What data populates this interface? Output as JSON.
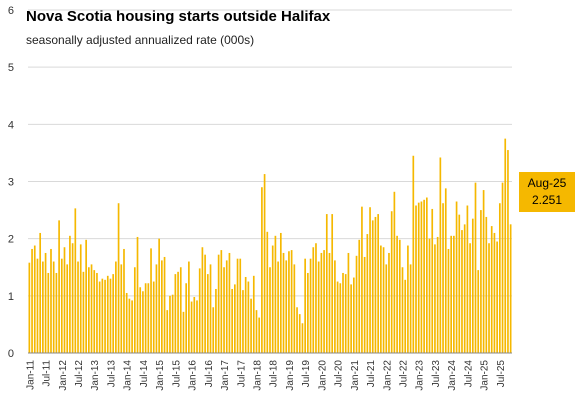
{
  "chart_data": {
    "type": "bar",
    "title": "Nova Scotia housing  starts outside Halifax",
    "subtitle": "seasonally adjusted annualized rate (000s)",
    "ylim": [
      0,
      6
    ],
    "yticks": [
      0,
      1,
      2,
      3,
      4,
      5,
      6
    ],
    "grid": true,
    "bar_color": "#F5B800",
    "start": "2011-01",
    "xtick_labels": [
      "Jan-11",
      "Jul-11",
      "Jan-12",
      "Jul-12",
      "Jan-13",
      "Jul-13",
      "Jan-14",
      "Jul-14",
      "Jan-15",
      "Jul-15",
      "Jan-16",
      "Jul-16",
      "Jan-17",
      "Jul-17",
      "Jan-18",
      "Jul-18",
      "Jan-19",
      "Jul-19",
      "Jan-20",
      "Jul-20",
      "Jan-21",
      "Jul-21",
      "Jan-22",
      "Jul-22",
      "Jan-23",
      "Jul-23",
      "Jan-24",
      "Jul-24",
      "Jan-25",
      "Jul-25"
    ],
    "values": [
      1.58,
      1.82,
      1.88,
      1.65,
      2.1,
      1.6,
      1.75,
      1.4,
      1.82,
      1.6,
      1.4,
      2.32,
      1.65,
      1.85,
      1.55,
      2.05,
      1.92,
      2.53,
      1.6,
      1.9,
      1.42,
      1.98,
      1.5,
      1.55,
      1.45,
      1.4,
      1.25,
      1.3,
      1.28,
      1.35,
      1.3,
      1.38,
      1.6,
      2.62,
      1.55,
      1.82,
      1.05,
      0.95,
      0.92,
      1.5,
      2.03,
      1.15,
      1.08,
      1.22,
      1.22,
      1.83,
      1.25,
      1.55,
      2.0,
      1.62,
      1.68,
      0.75,
      1.0,
      1.02,
      1.38,
      1.42,
      1.5,
      0.72,
      1.22,
      1.6,
      0.9,
      0.98,
      0.92,
      1.48,
      1.85,
      1.72,
      1.38,
      1.55,
      0.8,
      1.12,
      1.72,
      1.8,
      1.5,
      1.62,
      1.75,
      1.12,
      1.2,
      1.65,
      1.65,
      1.1,
      1.33,
      1.25,
      0.95,
      1.35,
      0.75,
      0.62,
      2.9,
      3.13,
      2.12,
      1.5,
      1.88,
      2.05,
      1.6,
      2.1,
      1.75,
      1.62,
      1.78,
      1.8,
      1.55,
      0.8,
      0.68,
      0.52,
      1.65,
      1.4,
      1.65,
      1.85,
      1.92,
      1.6,
      1.75,
      1.8,
      2.43,
      1.75,
      2.43,
      1.62,
      1.25,
      1.22,
      1.4,
      1.38,
      1.75,
      1.2,
      1.32,
      1.7,
      1.98,
      2.56,
      1.68,
      2.08,
      2.55,
      2.32,
      2.38,
      2.43,
      1.88,
      1.85,
      1.55,
      1.75,
      2.48,
      2.82,
      2.05,
      1.98,
      1.5,
      1.28,
      1.88,
      1.55,
      3.45,
      2.58,
      2.63,
      2.65,
      2.68,
      2.72,
      2.0,
      2.52,
      1.9,
      2.03,
      3.42,
      2.62,
      2.88,
      1.82,
      2.05,
      2.05,
      2.65,
      2.42,
      2.15,
      2.25,
      2.58,
      1.92,
      2.35,
      2.98,
      1.45,
      2.5,
      2.85,
      2.38,
      1.92,
      2.22,
      2.1,
      1.95,
      2.62,
      2.98,
      3.75,
      3.55,
      2.251
    ],
    "last_label": "Aug-25",
    "last_value": "2.251"
  }
}
